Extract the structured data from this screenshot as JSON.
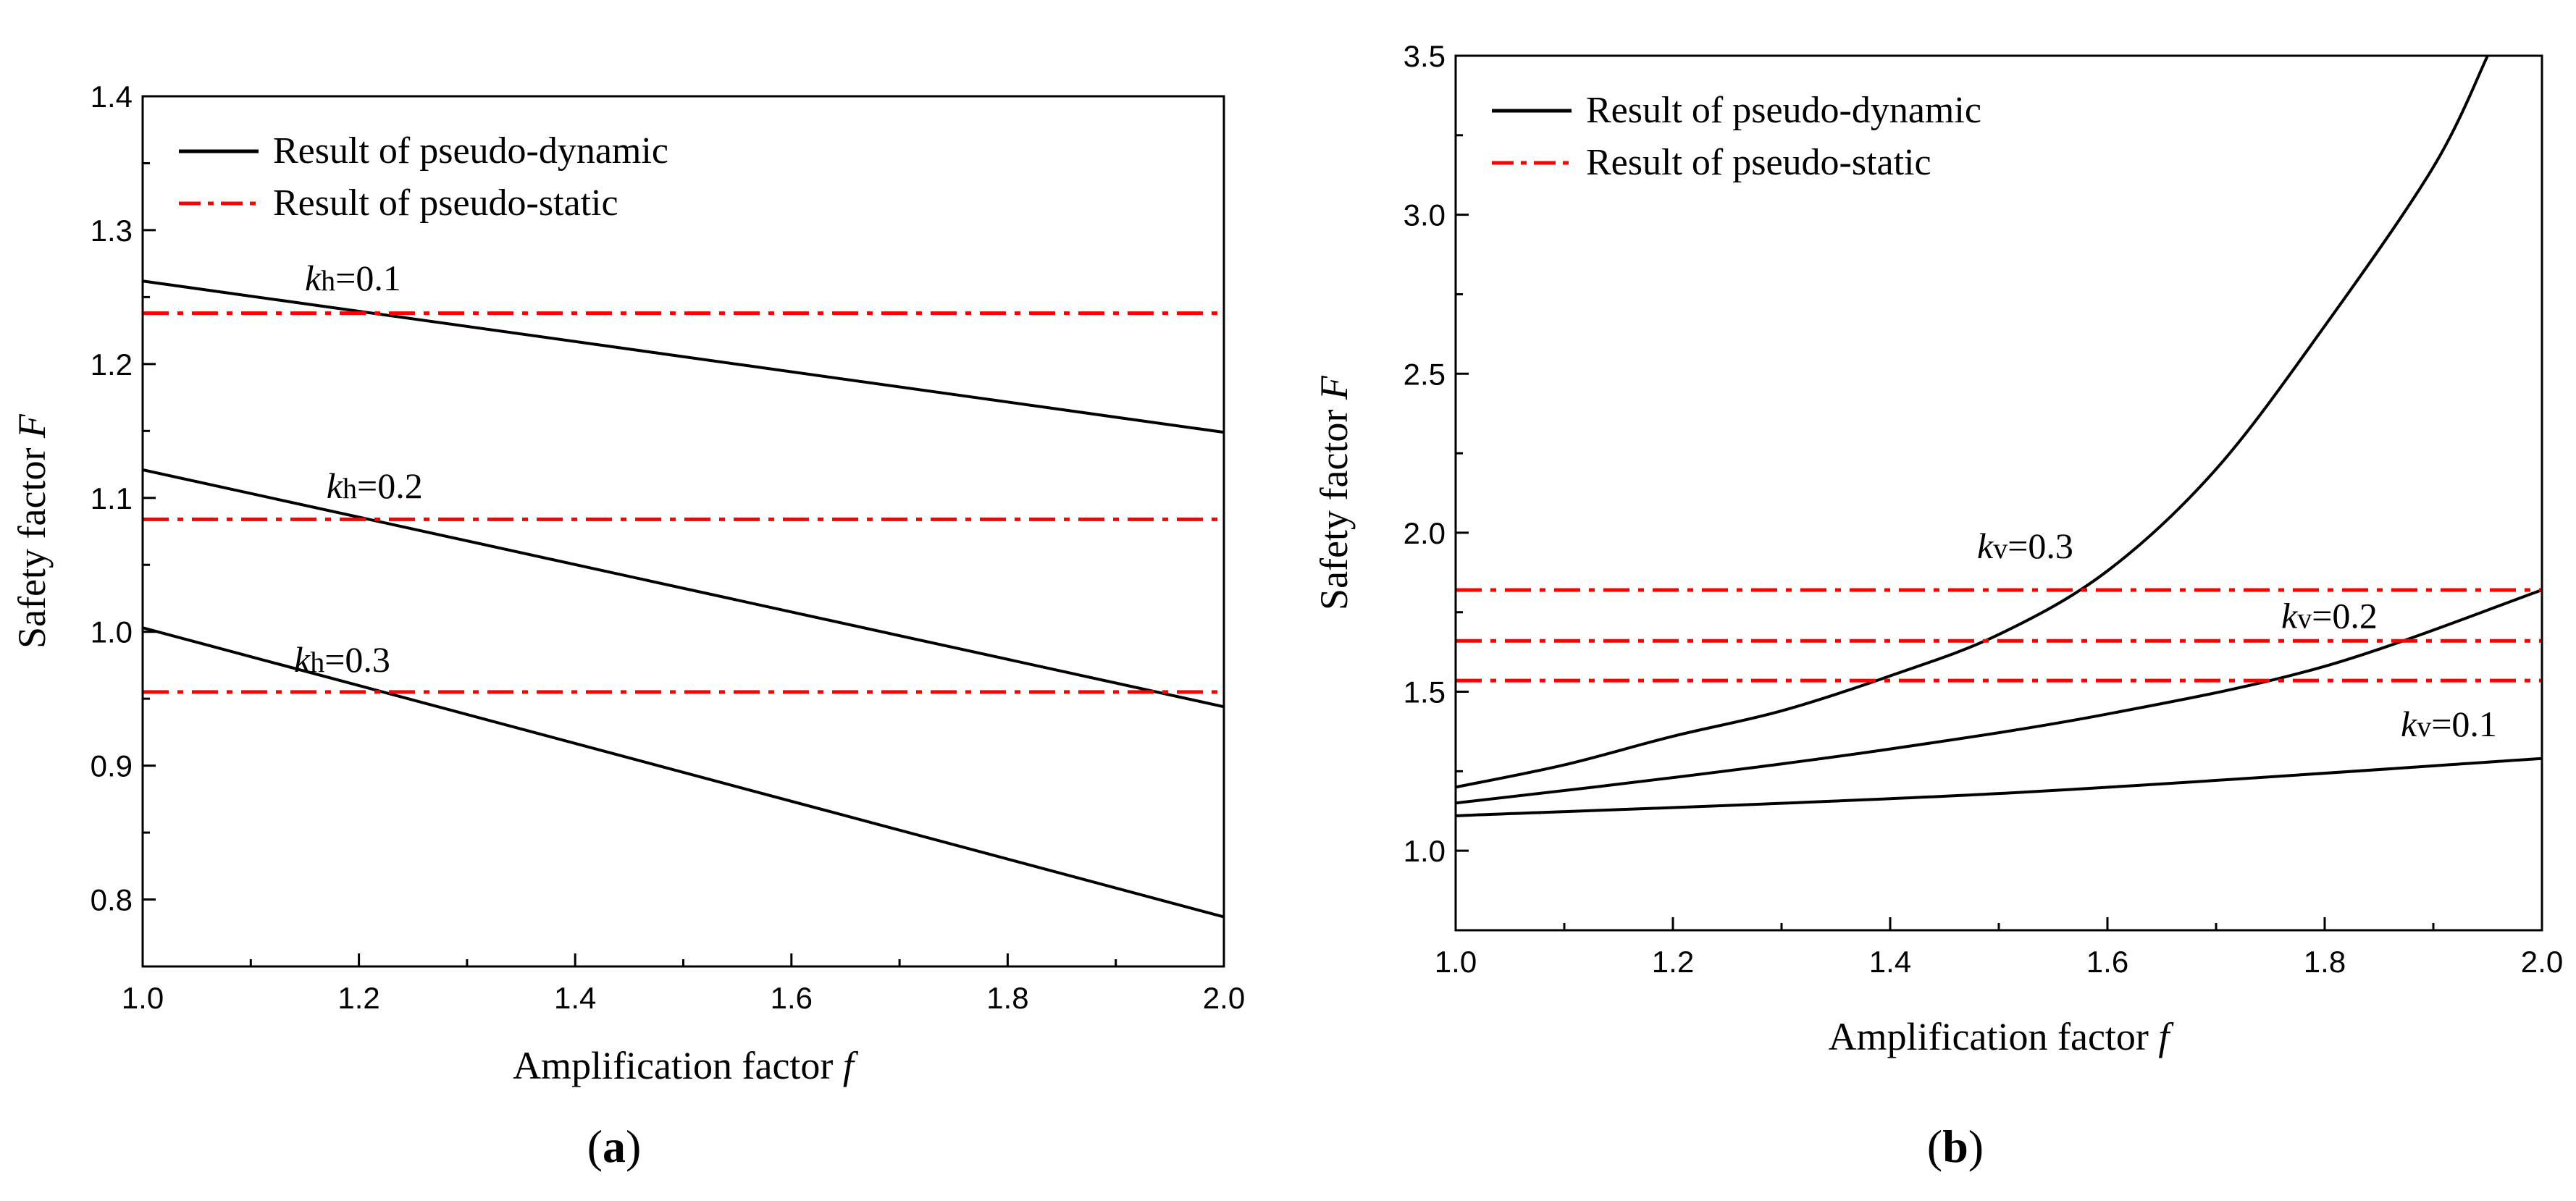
{
  "chart_data": [
    {
      "panel": "a",
      "type": "line",
      "panel_label": "(a)",
      "xlabel": "Amplification factor",
      "xlabel_var": "f",
      "ylabel": "Safety factor",
      "ylabel_var": "F",
      "xlim": [
        1.0,
        2.0
      ],
      "ylim": [
        0.75,
        1.4
      ],
      "xticks": [
        1.0,
        1.2,
        1.4,
        1.6,
        1.8,
        2.0
      ],
      "xtick_labels": [
        "1.0",
        "1.2",
        "1.4",
        "1.6",
        "1.8",
        "2.0"
      ],
      "yticks": [
        0.8,
        0.9,
        1.0,
        1.1,
        1.2,
        1.3,
        1.4
      ],
      "ytick_labels": [
        "0.8",
        "0.9",
        "1.0",
        "1.1",
        "1.2",
        "1.3",
        "1.4"
      ],
      "legend": {
        "placement": "top-left",
        "entries": [
          {
            "label": "Result of pseudo-dynamic",
            "style": "solid",
            "color": "#000000"
          },
          {
            "label": "Result of pseudo-static",
            "style": "dashdot",
            "color": "#ff0000"
          }
        ]
      },
      "series": [
        {
          "name": "pseudo-dynamic kh=0.1",
          "style": "solid",
          "color": "#000000",
          "x": [
            1.0,
            2.0
          ],
          "y": [
            1.262,
            1.149
          ]
        },
        {
          "name": "pseudo-dynamic kh=0.2",
          "style": "solid",
          "color": "#000000",
          "x": [
            1.0,
            2.0
          ],
          "y": [
            1.121,
            0.944
          ]
        },
        {
          "name": "pseudo-dynamic kh=0.3",
          "style": "solid",
          "color": "#000000",
          "x": [
            1.0,
            2.0
          ],
          "y": [
            1.003,
            0.787
          ]
        },
        {
          "name": "pseudo-static kh=0.1",
          "style": "dashdot",
          "color": "#ff0000",
          "x": [
            1.0,
            2.0
          ],
          "y": [
            1.238,
            1.238
          ]
        },
        {
          "name": "pseudo-static kh=0.2",
          "style": "dashdot",
          "color": "#ff0000",
          "x": [
            1.0,
            2.0
          ],
          "y": [
            1.084,
            1.084
          ]
        },
        {
          "name": "pseudo-static kh=0.3",
          "style": "dashdot",
          "color": "#ff0000",
          "x": [
            1.0,
            2.0
          ],
          "y": [
            0.955,
            0.955
          ]
        }
      ],
      "annotations": [
        {
          "var": "k",
          "sub": "h",
          "value": "=0.1",
          "x": 1.15,
          "y": 1.255
        },
        {
          "var": "k",
          "sub": "h",
          "value": "=0.2",
          "x": 1.17,
          "y": 1.1
        },
        {
          "var": "k",
          "sub": "h",
          "value": "=0.3",
          "x": 1.14,
          "y": 0.97
        }
      ]
    },
    {
      "panel": "b",
      "type": "line",
      "panel_label": "(b)",
      "xlabel": "Amplification factor",
      "xlabel_var": "f",
      "ylabel": "Safety factor",
      "ylabel_var": "F",
      "xlim": [
        1.0,
        2.0
      ],
      "ylim": [
        0.75,
        3.5
      ],
      "xticks": [
        1.0,
        1.2,
        1.4,
        1.6,
        1.8,
        2.0
      ],
      "xtick_labels": [
        "1.0",
        "1.2",
        "1.4",
        "1.6",
        "1.8",
        "2.0"
      ],
      "yticks": [
        1.0,
        1.5,
        2.0,
        2.5,
        3.0,
        3.5
      ],
      "ytick_labels": [
        "1.0",
        "1.5",
        "2.0",
        "2.5",
        "3.0",
        "3.5"
      ],
      "legend": {
        "placement": "top-left",
        "entries": [
          {
            "label": "Result of pseudo-dynamic",
            "style": "solid",
            "color": "#000000"
          },
          {
            "label": "Result of pseudo-static",
            "style": "dashdot",
            "color": "#ff0000"
          }
        ]
      },
      "series": [
        {
          "name": "pseudo-dynamic kv=0.3",
          "style": "solid",
          "color": "#000000",
          "x": [
            1.0,
            1.1,
            1.2,
            1.3,
            1.4,
            1.5,
            1.6,
            1.7,
            1.8,
            1.9,
            1.95
          ],
          "y": [
            1.2,
            1.27,
            1.36,
            1.44,
            1.55,
            1.68,
            1.88,
            2.2,
            2.65,
            3.15,
            3.5
          ]
        },
        {
          "name": "pseudo-dynamic kv=0.2",
          "style": "solid",
          "color": "#000000",
          "x": [
            1.0,
            1.2,
            1.4,
            1.6,
            1.8,
            2.0
          ],
          "y": [
            1.15,
            1.23,
            1.32,
            1.43,
            1.58,
            1.82
          ]
        },
        {
          "name": "pseudo-dynamic kv=0.1",
          "style": "solid",
          "color": "#000000",
          "x": [
            1.0,
            1.5,
            2.0
          ],
          "y": [
            1.11,
            1.18,
            1.29
          ]
        },
        {
          "name": "pseudo-static kv=0.3",
          "style": "dashdot",
          "color": "#ff0000",
          "x": [
            1.0,
            2.0
          ],
          "y": [
            1.82,
            1.82
          ]
        },
        {
          "name": "pseudo-static kv=0.2",
          "style": "dashdot",
          "color": "#ff0000",
          "x": [
            1.0,
            2.0
          ],
          "y": [
            1.66,
            1.66
          ]
        },
        {
          "name": "pseudo-static kv=0.1",
          "style": "dashdot",
          "color": "#ff0000",
          "x": [
            1.0,
            2.0
          ],
          "y": [
            1.535,
            1.535
          ]
        }
      ],
      "annotations": [
        {
          "var": "k",
          "sub": "v",
          "value": "=0.3",
          "x": 1.48,
          "y": 1.92
        },
        {
          "var": "k",
          "sub": "v",
          "value": "=0.2",
          "x": 1.76,
          "y": 1.7
        },
        {
          "var": "k",
          "sub": "v",
          "value": "=0.1",
          "x": 1.87,
          "y": 1.36
        }
      ]
    }
  ]
}
